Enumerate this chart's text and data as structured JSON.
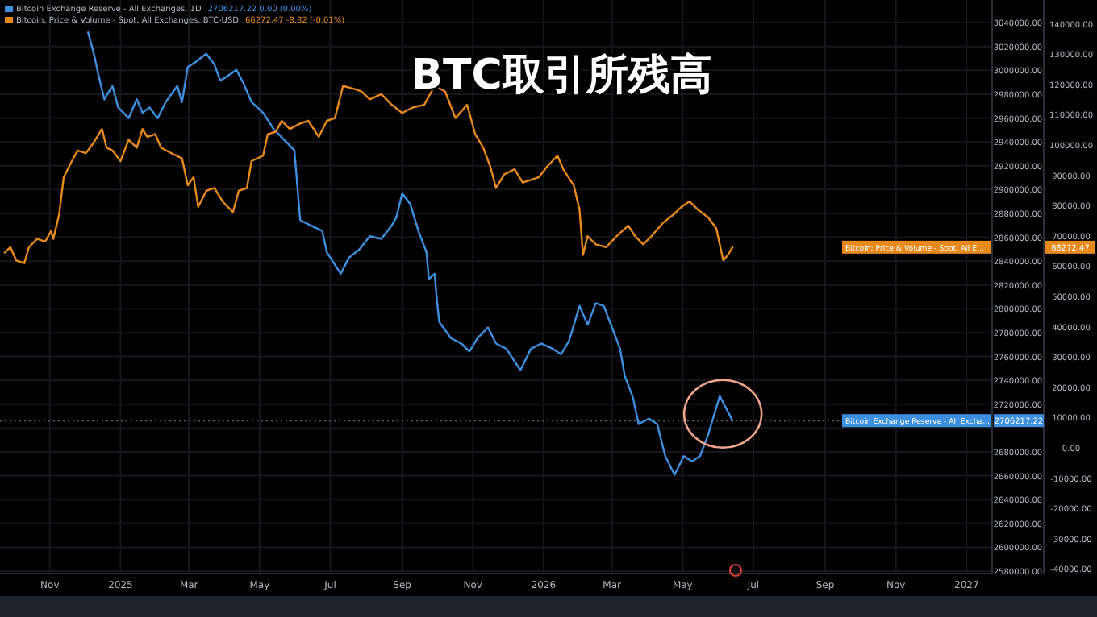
{
  "chart_data": {
    "type": "line",
    "title": "BTC取引所残高",
    "annotations": [
      "2706217.22  0.00 (0.00%)",
      "66272.47  -8.82 (-0.01%)",
      "Bitcoin Exchange Reserve - All Excha...",
      "Bitcoin: Price & Volume - Spot, All E...",
      "2706217.22",
      "66272.47"
    ],
    "xlim": [
      "2024-09-19",
      "2027-01-23"
    ],
    "xticks": [
      {
        "value": "2024-11-01",
        "label": "Nov"
      },
      {
        "value": "2025-01-01",
        "label": "2025"
      },
      {
        "value": "2025-03-01",
        "label": "Mar"
      },
      {
        "value": "2025-05-01",
        "label": "May"
      },
      {
        "value": "2025-07-01",
        "label": "Jul"
      },
      {
        "value": "2025-09-01",
        "label": "Sep"
      },
      {
        "value": "2025-11-01",
        "label": "Nov"
      },
      {
        "value": "2026-01-01",
        "label": "2026"
      },
      {
        "value": "2026-03-01",
        "label": "Mar"
      },
      {
        "value": "2026-05-01",
        "label": "May"
      },
      {
        "value": "2026-07-01",
        "label": "Jul"
      },
      {
        "value": "2026-09-01",
        "label": "Sep"
      },
      {
        "value": "2026-11-01",
        "label": "Nov"
      },
      {
        "value": "2027-01-01",
        "label": "2027"
      }
    ],
    "ylim": [
      2578000,
      3059000
    ],
    "yticks": [
      {
        "value": 2580000,
        "label": "2580000.00"
      },
      {
        "value": 2600000,
        "label": "2600000.00"
      },
      {
        "value": 2620000,
        "label": "2620000.00"
      },
      {
        "value": 2640000,
        "label": "2640000.00"
      },
      {
        "value": 2660000,
        "label": "2660000.00"
      },
      {
        "value": 2680000,
        "label": "2680000.00"
      },
      {
        "value": 2700000,
        "label": null
      },
      {
        "value": 2720000,
        "label": "2720000.00"
      },
      {
        "value": 2740000,
        "label": "2740000.00"
      },
      {
        "value": 2760000,
        "label": "2760000.00"
      },
      {
        "value": 2780000,
        "label": "2780000.00"
      },
      {
        "value": 2800000,
        "label": "2800000.00"
      },
      {
        "value": 2820000,
        "label": "2820000.00"
      },
      {
        "value": 2840000,
        "label": "2840000.00"
      },
      {
        "value": 2860000,
        "label": "2860000.00"
      },
      {
        "value": 2880000,
        "label": "2880000.00"
      },
      {
        "value": 2900000,
        "label": "2900000.00"
      },
      {
        "value": 2920000,
        "label": "2920000.00"
      },
      {
        "value": 2940000,
        "label": "2940000.00"
      },
      {
        "value": 2960000,
        "label": "2960000.00"
      },
      {
        "value": 2980000,
        "label": "2980000.00"
      },
      {
        "value": 3000000,
        "label": "3000000.00"
      },
      {
        "value": 3020000,
        "label": "3020000.00"
      },
      {
        "value": 3040000,
        "label": "3040000.00"
      }
    ],
    "y2lim": [
      -41500,
      147900
    ],
    "y2ticks": [
      {
        "value": -40000,
        "label": "-40000.00"
      },
      {
        "value": -30000,
        "label": "-30000.00"
      },
      {
        "value": -20000,
        "label": "-20000.00"
      },
      {
        "value": -10000,
        "label": "-10000.00"
      },
      {
        "value": 0,
        "label": "0.00"
      },
      {
        "value": 10000,
        "label": "10000.00"
      },
      {
        "value": 20000,
        "label": "20000.00"
      },
      {
        "value": 30000,
        "label": "30000.00"
      },
      {
        "value": 40000,
        "label": "40000.00"
      },
      {
        "value": 50000,
        "label": "50000.00"
      },
      {
        "value": 60000,
        "label": "60000.00"
      },
      {
        "value": 70000,
        "label": "70000.00"
      },
      {
        "value": 80000,
        "label": "80000.00"
      },
      {
        "value": 90000,
        "label": "90000.00"
      },
      {
        "value": 100000,
        "label": "100000.00"
      },
      {
        "value": 110000,
        "label": "110000.00"
      },
      {
        "value": 120000,
        "label": "120000.00"
      },
      {
        "value": 130000,
        "label": "130000.00"
      },
      {
        "value": 140000,
        "label": "140000.00"
      }
    ],
    "grid": true,
    "legend": "top left",
    "ref_lines": [
      {
        "axis": "y",
        "value": 2706217.22,
        "color": "#5a5f6a",
        "line_style": "dotted"
      }
    ],
    "series": [
      {
        "name": "Bitcoin Exchange Reserve - All Exchanges, 1D",
        "color": "#3d8fe0",
        "x": [
          "2024-12-04",
          "2024-12-09",
          "2024-12-13",
          "2024-12-18",
          "2024-12-25",
          "2024-12-30",
          "2025-01-08",
          "2025-01-15",
          "2025-01-20",
          "2025-01-26",
          "2025-02-02",
          "2025-02-09",
          "2025-02-19",
          "2025-02-23",
          "2025-02-28",
          "2025-03-07",
          "2025-03-16",
          "2025-03-23",
          "2025-03-28",
          "2025-04-01",
          "2025-04-11",
          "2025-04-17",
          "2025-04-24",
          "2025-05-04",
          "2025-05-13",
          "2025-05-22",
          "2025-05-31",
          "2025-06-05",
          "2025-06-14",
          "2025-06-24",
          "2025-06-28",
          "2025-07-10",
          "2025-07-17",
          "2025-07-26",
          "2025-08-04",
          "2025-08-14",
          "2025-08-23",
          "2025-08-27",
          "2025-09-01",
          "2025-09-08",
          "2025-09-15",
          "2025-09-22",
          "2025-09-24",
          "2025-09-29",
          "2025-10-01",
          "2025-10-03",
          "2025-10-13",
          "2025-10-22",
          "2025-10-29",
          "2025-11-05",
          "2025-11-14",
          "2025-11-21",
          "2025-11-30",
          "2025-12-12",
          "2025-12-21",
          "2025-12-30",
          "2026-01-09",
          "2026-01-16",
          "2026-01-23",
          "2026-02-01",
          "2026-02-08",
          "2026-02-15",
          "2026-02-22",
          "2026-03-01",
          "2026-03-08",
          "2026-03-12",
          "2026-03-19",
          "2026-03-24",
          "2026-04-02",
          "2026-04-09",
          "2026-04-16",
          "2026-04-24",
          "2026-05-02",
          "2026-05-09",
          "2026-05-16",
          "2026-05-23",
          "2026-06-02",
          "2026-06-13"
        ],
        "values": [
          3031900,
          3013900,
          2995900,
          2975700,
          2986900,
          2968900,
          2959900,
          2975700,
          2964400,
          2968900,
          2959900,
          2973400,
          2986900,
          2973400,
          3002700,
          3007200,
          3013900,
          3004900,
          2991400,
          2993700,
          3000400,
          2989200,
          2973400,
          2964400,
          2950900,
          2941900,
          2932900,
          2874400,
          2869900,
          2865400,
          2847400,
          2829400,
          2842900,
          2849700,
          2860900,
          2858700,
          2869900,
          2876700,
          2896900,
          2887900,
          2865400,
          2847400,
          2824900,
          2829400,
          2806900,
          2788900,
          2775400,
          2770900,
          2764200,
          2775400,
          2784400,
          2770900,
          2766400,
          2748400,
          2766400,
          2770900,
          2766400,
          2761900,
          2773200,
          2802400,
          2786700,
          2804700,
          2802400,
          2784400,
          2766400,
          2743900,
          2725900,
          2703400,
          2707900,
          2703400,
          2676400,
          2660700,
          2676400,
          2671900,
          2676400,
          2694400,
          2726800,
          2706217.22
        ]
      },
      {
        "name": "Bitcoin: Price & Volume - Spot, All Exchanges, BTC-USD",
        "color": "#e8891c",
        "axis": "y2",
        "x": [
          "2024-09-23",
          "2024-09-28",
          "2024-10-03",
          "2024-10-10",
          "2024-10-14",
          "2024-10-21",
          "2024-10-28",
          "2024-11-02",
          "2024-11-04",
          "2024-11-09",
          "2024-11-13",
          "2024-11-20",
          "2024-11-25",
          "2024-12-02",
          "2024-12-09",
          "2024-12-16",
          "2024-12-20",
          "2024-12-25",
          "2025-01-01",
          "2025-01-08",
          "2025-01-15",
          "2025-01-20",
          "2025-01-24",
          "2025-01-31",
          "2025-02-05",
          "2025-02-14",
          "2025-02-23",
          "2025-02-28",
          "2025-03-05",
          "2025-03-09",
          "2025-03-16",
          "2025-03-23",
          "2025-03-30",
          "2025-04-08",
          "2025-04-13",
          "2025-04-20",
          "2025-04-24",
          "2025-05-04",
          "2025-05-08",
          "2025-05-15",
          "2025-05-20",
          "2025-05-27",
          "2025-06-05",
          "2025-06-12",
          "2025-06-21",
          "2025-06-28",
          "2025-07-05",
          "2025-07-12",
          "2025-07-21",
          "2025-07-28",
          "2025-08-04",
          "2025-08-14",
          "2025-08-23",
          "2025-09-01",
          "2025-09-10",
          "2025-09-20",
          "2025-09-29",
          "2025-10-08",
          "2025-10-17",
          "2025-10-27",
          "2025-11-03",
          "2025-11-10",
          "2025-11-16",
          "2025-11-21",
          "2025-11-28",
          "2025-12-07",
          "2025-12-14",
          "2025-12-21",
          "2025-12-28",
          "2026-01-04",
          "2026-01-13",
          "2026-01-18",
          "2026-01-27",
          "2026-02-01",
          "2026-02-04",
          "2026-02-08",
          "2026-02-15",
          "2026-02-24",
          "2026-03-05",
          "2026-03-15",
          "2026-03-21",
          "2026-03-28",
          "2026-04-04",
          "2026-04-14",
          "2026-04-23",
          "2026-04-30",
          "2026-05-07",
          "2026-05-14",
          "2026-05-23",
          "2026-05-30",
          "2026-06-05",
          "2026-06-09",
          "2026-06-13"
        ],
        "values": [
          64500,
          66300,
          61900,
          61000,
          66300,
          69000,
          68100,
          71600,
          69000,
          77000,
          89400,
          94700,
          98200,
          97300,
          100900,
          105300,
          99100,
          98200,
          94700,
          101800,
          99100,
          105300,
          102700,
          103600,
          99100,
          97300,
          95600,
          86700,
          89400,
          79600,
          84900,
          85800,
          81400,
          77800,
          84900,
          85800,
          94700,
          96500,
          103600,
          104400,
          108000,
          105300,
          107100,
          108000,
          102700,
          108000,
          108900,
          119500,
          118600,
          117700,
          115100,
          116800,
          113300,
          110600,
          112400,
          113300,
          119500,
          117700,
          108900,
          113300,
          103600,
          99100,
          92900,
          85800,
          90300,
          92000,
          87600,
          88500,
          89400,
          92900,
          96500,
          92000,
          86700,
          78700,
          63700,
          69900,
          67200,
          66300,
          69900,
          73400,
          69900,
          67200,
          69900,
          74300,
          77000,
          79600,
          81400,
          78700,
          76100,
          72500,
          61900,
          63700,
          66272.47
        ]
      }
    ]
  }
}
